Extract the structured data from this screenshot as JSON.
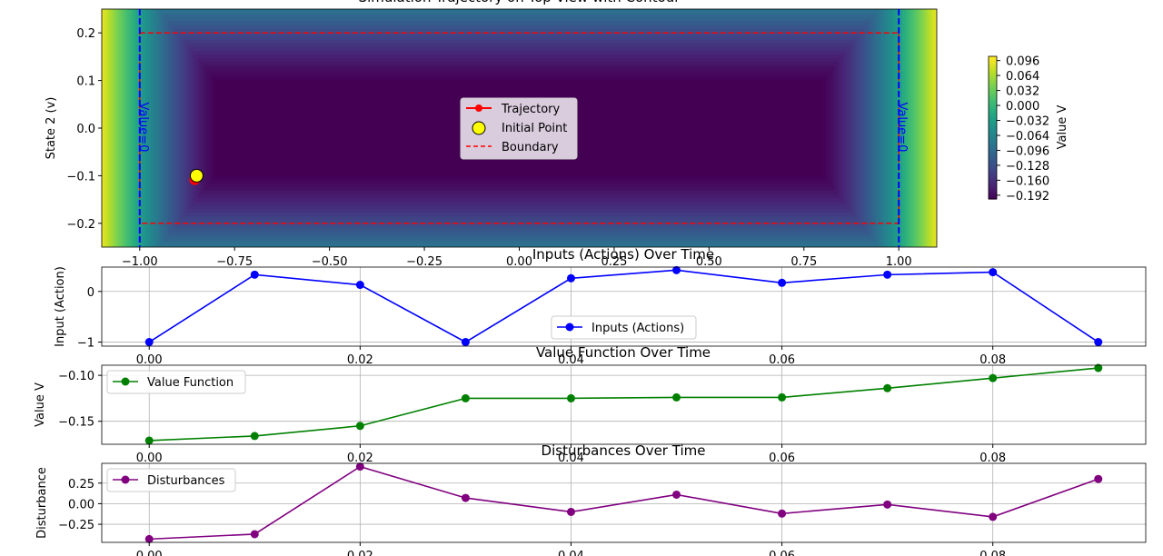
{
  "chart_data": [
    {
      "type": "heatmap",
      "title": "Simulation Trajectory on Top View with Contour",
      "xlabel": "",
      "ylabel": "State 2 (v)",
      "xlim": [
        -1.1,
        1.1
      ],
      "ylim": [
        -0.25,
        0.25
      ],
      "xticks": [
        "−1.00",
        "−0.75",
        "−0.50",
        "−0.25",
        "0.00",
        "0.25",
        "0.50",
        "0.75",
        "1.00"
      ],
      "xtick_values": [
        -1.0,
        -0.75,
        -0.5,
        -0.25,
        0.0,
        0.25,
        0.5,
        0.75,
        1.0
      ],
      "yticks": [
        "−0.2",
        "−0.1",
        "0.0",
        "0.1",
        "0.2"
      ],
      "ytick_values": [
        -0.2,
        -0.1,
        0.0,
        0.1,
        0.2
      ],
      "colorbar": {
        "label": "Value V",
        "colormap": "viridis",
        "range": [
          -0.2,
          0.105
        ],
        "ticks": [
          "0.096",
          "0.064",
          "0.032",
          "0.000",
          "−0.032",
          "−0.064",
          "−0.096",
          "−0.128",
          "−0.160",
          "−0.192"
        ],
        "tick_values": [
          0.096,
          0.064,
          0.032,
          0.0,
          -0.032,
          -0.064,
          -0.096,
          -0.128,
          -0.16,
          -0.192
        ]
      },
      "trajectory": {
        "name": "Trajectory",
        "color": "#ff0000",
        "points": [
          [
            -0.85,
            -0.1
          ],
          [
            -0.855,
            -0.108
          ]
        ]
      },
      "initial_point": {
        "name": "Initial Point",
        "x": -0.85,
        "y": -0.1,
        "color": "#ffff00"
      },
      "boundary": {
        "name": "Boundary",
        "color": "#ff0000",
        "x": [
          -1.0,
          1.0
        ],
        "y": [
          -0.2,
          0.2
        ]
      },
      "level_lines": {
        "x": [
          -1.0,
          1.0
        ],
        "color": "#0000ff",
        "labels": [
          "Value=0",
          "Value=0"
        ]
      },
      "legend": [
        "Trajectory",
        "Initial Point",
        "Boundary"
      ],
      "legend_position": "center"
    },
    {
      "type": "line",
      "title": "Inputs (Actions) Over Time",
      "xlabel": "",
      "ylabel": "Input (Action)",
      "xlim": [
        -0.0045,
        0.0945
      ],
      "ylim": [
        -1.08,
        0.48
      ],
      "xticks": [
        "0.00",
        "0.02",
        "0.04",
        "0.06",
        "0.08"
      ],
      "xtick_values": [
        0.0,
        0.02,
        0.04,
        0.06,
        0.08
      ],
      "yticks": [
        "−1",
        "0"
      ],
      "ytick_values": [
        -1,
        0
      ],
      "legend_position": "lower center",
      "series": [
        {
          "name": "Inputs (Actions)",
          "color": "#0000ff",
          "x": [
            0.0,
            0.01,
            0.02,
            0.03,
            0.04,
            0.05,
            0.06,
            0.07,
            0.08,
            0.09
          ],
          "values": [
            -1.0,
            0.33,
            0.13,
            -1.0,
            0.26,
            0.42,
            0.17,
            0.33,
            0.38,
            -1.0
          ]
        }
      ]
    },
    {
      "type": "line",
      "title": "Value Function Over Time",
      "xlabel": "",
      "ylabel": "Value V",
      "xlim": [
        -0.0045,
        0.0945
      ],
      "ylim": [
        -0.175,
        -0.089
      ],
      "xticks": [
        "0.00",
        "0.02",
        "0.04",
        "0.06",
        "0.08"
      ],
      "xtick_values": [
        0.0,
        0.02,
        0.04,
        0.06,
        0.08
      ],
      "yticks": [
        "−0.10",
        "−0.15"
      ],
      "ytick_values": [
        -0.1,
        -0.15
      ],
      "legend_position": "upper left",
      "series": [
        {
          "name": "Value Function",
          "color": "#008000",
          "x": [
            0.0,
            0.01,
            0.02,
            0.03,
            0.04,
            0.05,
            0.06,
            0.07,
            0.08,
            0.09
          ],
          "values": [
            -0.171,
            -0.166,
            -0.155,
            -0.125,
            -0.125,
            -0.124,
            -0.124,
            -0.114,
            -0.103,
            -0.092
          ]
        }
      ]
    },
    {
      "type": "line",
      "title": "Disturbances Over Time",
      "xlabel": "",
      "ylabel": "Disturbance",
      "xlim": [
        -0.0045,
        0.0945
      ],
      "ylim": [
        -0.47,
        0.49
      ],
      "xticks": [
        "0.00",
        "0.02",
        "0.04",
        "0.06",
        "0.08"
      ],
      "xtick_values": [
        0.0,
        0.02,
        0.04,
        0.06,
        0.08
      ],
      "yticks": [
        "0.25",
        "0.00",
        "−0.25"
      ],
      "ytick_values": [
        0.25,
        0.0,
        -0.25
      ],
      "legend_position": "upper left",
      "series": [
        {
          "name": "Disturbances",
          "color": "#800080",
          "x": [
            0.0,
            0.01,
            0.02,
            0.03,
            0.04,
            0.05,
            0.06,
            0.07,
            0.08,
            0.09
          ],
          "values": [
            -0.43,
            -0.37,
            0.45,
            0.07,
            -0.1,
            0.11,
            -0.12,
            -0.01,
            -0.16,
            0.3
          ]
        }
      ]
    }
  ]
}
